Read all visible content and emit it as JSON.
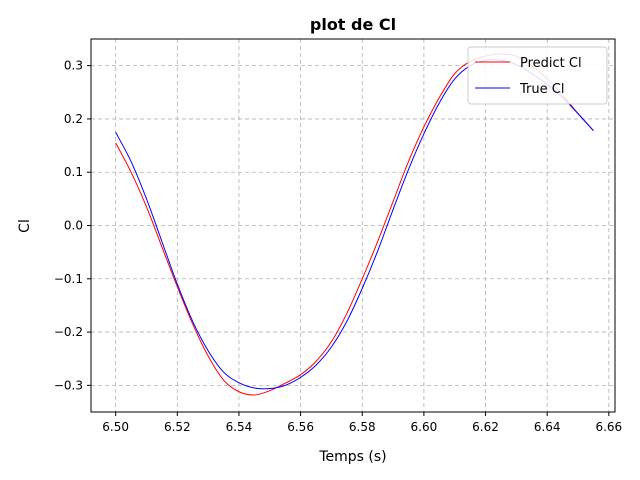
{
  "chart_data": {
    "type": "line",
    "title": "plot de Cl",
    "xlabel": "Temps (s)",
    "ylabel": "Cl",
    "xlim": [
      6.492,
      6.662
    ],
    "ylim": [
      -0.35,
      0.35
    ],
    "xticks": [
      6.5,
      6.52,
      6.54,
      6.56,
      6.58,
      6.6,
      6.62,
      6.64,
      6.66
    ],
    "xtick_labels": [
      "6.50",
      "6.52",
      "6.54",
      "6.56",
      "6.58",
      "6.60",
      "6.62",
      "6.64",
      "6.66"
    ],
    "yticks": [
      -0.3,
      -0.2,
      -0.1,
      0.0,
      0.1,
      0.2,
      0.3
    ],
    "ytick_labels": [
      "−0.3",
      "−0.2",
      "−0.1",
      "0.0",
      "0.1",
      "0.2",
      "0.3"
    ],
    "grid": true,
    "legend_position": "top-right",
    "series": [
      {
        "name": "Predict Cl",
        "color": "#ff0000",
        "x": [
          6.5,
          6.505,
          6.51,
          6.515,
          6.52,
          6.525,
          6.53,
          6.535,
          6.54,
          6.545,
          6.55,
          6.555,
          6.56,
          6.565,
          6.57,
          6.575,
          6.58,
          6.585,
          6.59,
          6.595,
          6.6,
          6.605,
          6.61,
          6.615,
          6.62,
          6.625,
          6.63,
          6.635,
          6.64,
          6.645,
          6.65,
          6.655
        ],
        "y": [
          0.155,
          0.1,
          0.035,
          -0.04,
          -0.115,
          -0.185,
          -0.245,
          -0.29,
          -0.312,
          -0.318,
          -0.31,
          -0.296,
          -0.28,
          -0.255,
          -0.218,
          -0.165,
          -0.1,
          -0.03,
          0.045,
          0.12,
          0.185,
          0.24,
          0.285,
          0.308,
          0.318,
          0.322,
          0.318,
          0.3,
          0.275,
          0.245,
          0.21,
          0.178
        ]
      },
      {
        "name": "True Cl",
        "color": "#0000ff",
        "x": [
          6.5,
          6.505,
          6.51,
          6.515,
          6.52,
          6.525,
          6.53,
          6.535,
          6.54,
          6.545,
          6.55,
          6.555,
          6.56,
          6.565,
          6.57,
          6.575,
          6.58,
          6.585,
          6.59,
          6.595,
          6.6,
          6.605,
          6.61,
          6.615,
          6.62,
          6.625,
          6.63,
          6.635,
          6.64,
          6.645,
          6.65,
          6.655
        ],
        "y": [
          0.175,
          0.12,
          0.05,
          -0.03,
          -0.11,
          -0.18,
          -0.235,
          -0.275,
          -0.295,
          -0.305,
          -0.306,
          -0.3,
          -0.285,
          -0.262,
          -0.228,
          -0.18,
          -0.118,
          -0.048,
          0.03,
          0.105,
          0.172,
          0.23,
          0.275,
          0.3,
          0.31,
          0.31,
          0.302,
          0.285,
          0.265,
          0.24,
          0.21,
          0.178
        ]
      }
    ]
  }
}
